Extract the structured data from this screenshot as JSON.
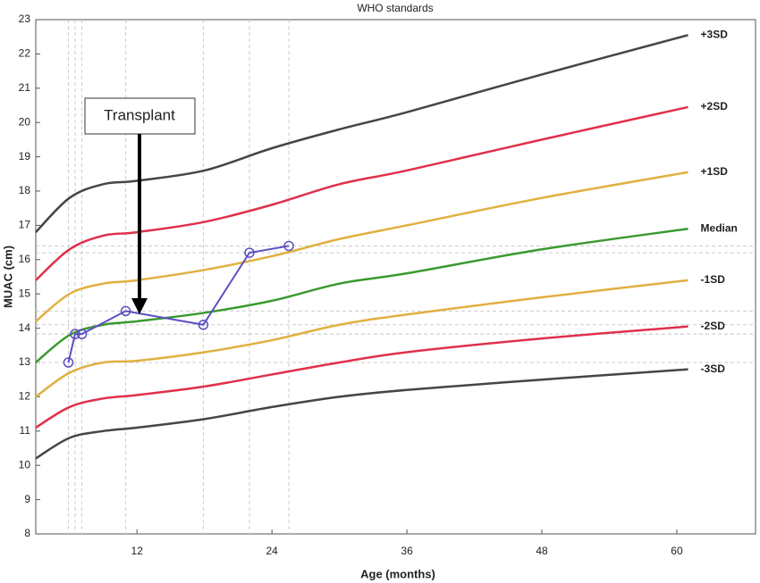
{
  "chart_data": {
    "type": "line",
    "title": "WHO standards",
    "x_label": "Age (months)",
    "y_label": "MUAC (cm)",
    "xlim": [
      3,
      67
    ],
    "ylim": [
      8,
      23
    ],
    "xticks": [
      12,
      24,
      36,
      48,
      60
    ],
    "yticks": [
      8,
      9,
      10,
      11,
      12,
      13,
      14,
      15,
      16,
      17,
      18,
      19,
      20,
      21,
      22,
      23
    ],
    "x": [
      3,
      6,
      9,
      12,
      18,
      24,
      30,
      36,
      48,
      61
    ],
    "series": [
      {
        "name": "+3SD",
        "color": "#454545",
        "values": [
          16.8,
          17.8,
          18.2,
          18.3,
          18.6,
          19.25,
          19.8,
          20.3,
          21.4,
          22.55
        ]
      },
      {
        "name": "+2SD",
        "color": "#e0304a",
        "values": [
          15.4,
          16.3,
          16.7,
          16.8,
          17.1,
          17.6,
          18.2,
          18.6,
          19.5,
          20.45
        ]
      },
      {
        "name": "+1SD",
        "color": "#e0b040",
        "values": [
          14.2,
          15.0,
          15.3,
          15.4,
          15.7,
          16.1,
          16.6,
          17.0,
          17.8,
          18.55
        ]
      },
      {
        "name": "Median",
        "color": "#3a9a30",
        "values": [
          13.0,
          13.8,
          14.1,
          14.2,
          14.45,
          14.8,
          15.3,
          15.6,
          16.3,
          16.9
        ]
      },
      {
        "name": "-1SD",
        "color": "#e0b040",
        "values": [
          12.0,
          12.7,
          13.0,
          13.05,
          13.3,
          13.65,
          14.1,
          14.4,
          14.9,
          15.4
        ]
      },
      {
        "name": "-2SD",
        "color": "#e0304a",
        "values": [
          11.1,
          11.7,
          11.95,
          12.05,
          12.3,
          12.65,
          13.0,
          13.3,
          13.7,
          14.05
        ]
      },
      {
        "name": "-3SD",
        "color": "#454545",
        "values": [
          10.2,
          10.8,
          11.0,
          11.1,
          11.35,
          11.7,
          12.0,
          12.2,
          12.5,
          12.8
        ]
      }
    ],
    "patient": {
      "color": "#5a4fc0",
      "x": [
        5.9,
        6.5,
        7.1,
        11.0,
        17.9,
        22.0,
        25.5
      ],
      "values": [
        13.0,
        13.83,
        13.83,
        14.5,
        14.1,
        16.2,
        16.4
      ]
    },
    "annotation": "Transplant"
  }
}
